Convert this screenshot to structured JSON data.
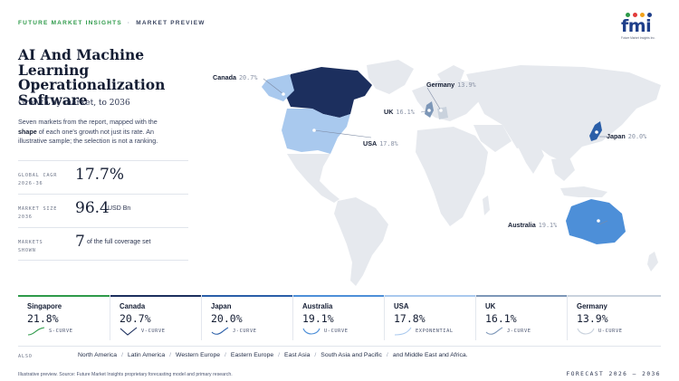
{
  "header": {
    "brand": "FUTURE MARKET INSIGHTS",
    "separator": "·",
    "section": "MARKET PREVIEW",
    "logo_text": "fmi",
    "logo_tagline": "Future Market Insights Inc."
  },
  "report": {
    "title": "AI And Machine Learning Operationalization Software",
    "subtitle": "Growth by market, to 2036",
    "description_pre": "Seven markets from the report, mapped with the ",
    "description_bold": "shape",
    "description_post": " of each one's growth not just its rate. An illustrative sample; the selection is not a ranking."
  },
  "kpis": {
    "cagr": {
      "label": "GLOBAL CAGR 2026-36",
      "value": "17.7%",
      "unit": ""
    },
    "size": {
      "label": "MARKET SIZE 2036",
      "value": "96.4",
      "unit": "USD Bn"
    },
    "markets": {
      "label": "MARKETS SHOWN",
      "value": "7",
      "unit": "of the full coverage set"
    }
  },
  "map": {
    "callouts": [
      {
        "name": "Canada",
        "value": "20.7%"
      },
      {
        "name": "Germany",
        "value": "13.9%"
      },
      {
        "name": "UK",
        "value": "16.1%"
      },
      {
        "name": "USA",
        "value": "17.8%"
      },
      {
        "name": "Japan",
        "value": "20.0%"
      },
      {
        "name": "Australia",
        "value": "19.1%"
      }
    ],
    "colors": {
      "land": "#e6e9ee",
      "canada": "#1c2f5e",
      "usa": "#a9c9ee",
      "japan": "#2a5ea8",
      "australia": "#4d8fd8",
      "uk": "#7d97b8",
      "germany": "#c9d2dd"
    }
  },
  "markets": [
    {
      "name": "Singapore",
      "value": "21.8%",
      "shape": "S-CURVE",
      "color": "#2e9a4a"
    },
    {
      "name": "Canada",
      "value": "20.7%",
      "shape": "V-CURVE",
      "color": "#1c2f5e"
    },
    {
      "name": "Japan",
      "value": "20.0%",
      "shape": "J-CURVE",
      "color": "#2a5ea8"
    },
    {
      "name": "Australia",
      "value": "19.1%",
      "shape": "U-CURVE",
      "color": "#4d8fd8"
    },
    {
      "name": "USA",
      "value": "17.8%",
      "shape": "EXPONENTIAL",
      "color": "#a9c9ee"
    },
    {
      "name": "UK",
      "value": "16.1%",
      "shape": "J-CURVE",
      "color": "#7d97b8"
    },
    {
      "name": "Germany",
      "value": "13.9%",
      "shape": "U-CURVE",
      "color": "#c9d2dd"
    }
  ],
  "also": {
    "label": "ALSO",
    "regions": [
      "North America",
      "Latin America",
      "Western Europe",
      "Eastern Europe",
      "East Asia",
      "South Asia and Pacific",
      "and Middle East and Africa."
    ]
  },
  "footer": {
    "note": "Illustrative preview. Source: Future Market Insights proprietary forecasting model and primary research.",
    "forecast": "FORECAST 2026 – 2036"
  }
}
